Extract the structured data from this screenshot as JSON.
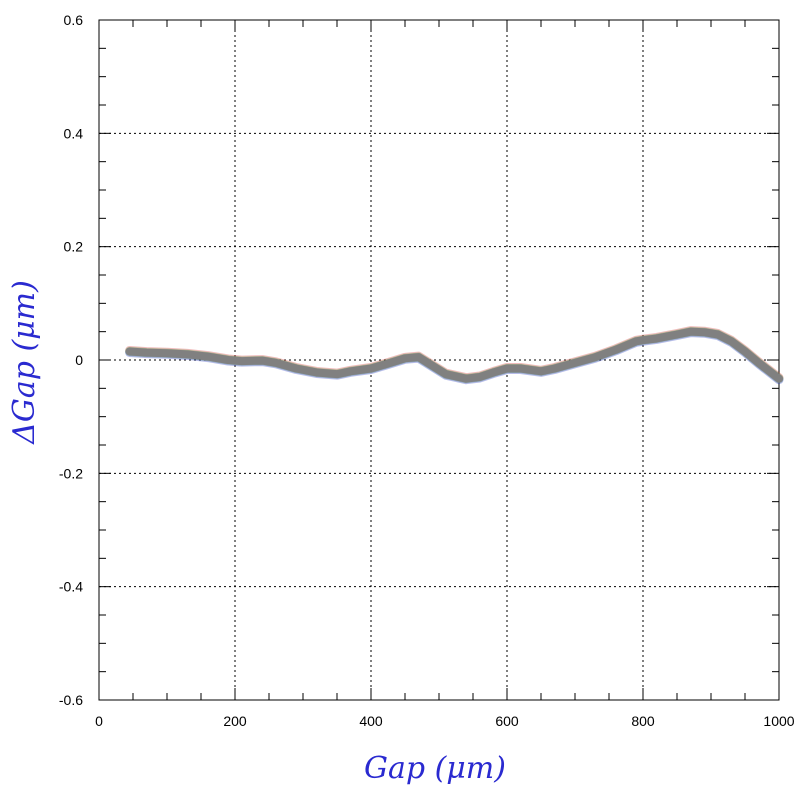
{
  "chart_data": {
    "type": "line",
    "title": "",
    "xlabel": "Gap (μm)",
    "ylabel": "ΔGap (μm)",
    "xlim": [
      0,
      1000
    ],
    "ylim": [
      -0.6,
      0.6
    ],
    "x_ticks": [
      "0",
      "200",
      "400",
      "600",
      "800",
      "1000"
    ],
    "y_ticks": [
      "-0.6",
      "-0.4",
      "-0.2",
      "0",
      "0.2",
      "0.4",
      "0.6"
    ],
    "grid": true,
    "colors": {
      "series": "#808080",
      "axis_title": "#2a2ad0",
      "noise": [
        "#d04040",
        "#30a030",
        "#3040c0"
      ]
    },
    "series": [
      {
        "x": [
          45,
          70,
          100,
          130,
          160,
          190,
          210,
          240,
          260,
          290,
          320,
          350,
          370,
          400,
          420,
          450,
          470,
          490,
          510,
          540,
          560,
          580,
          600,
          620,
          650,
          670,
          700,
          730,
          760,
          790,
          800,
          820,
          850,
          870,
          890,
          910,
          930,
          950,
          970,
          1000
        ],
        "y": [
          0.015,
          0.013,
          0.012,
          0.01,
          0.006,
          0.0,
          -0.002,
          -0.001,
          -0.005,
          -0.015,
          -0.022,
          -0.025,
          -0.02,
          -0.015,
          -0.008,
          0.003,
          0.005,
          -0.01,
          -0.025,
          -0.033,
          -0.03,
          -0.022,
          -0.015,
          -0.015,
          -0.02,
          -0.015,
          -0.005,
          0.005,
          0.018,
          0.033,
          0.035,
          0.038,
          0.045,
          0.05,
          0.049,
          0.045,
          0.033,
          0.015,
          -0.005,
          -0.033
        ]
      }
    ]
  }
}
